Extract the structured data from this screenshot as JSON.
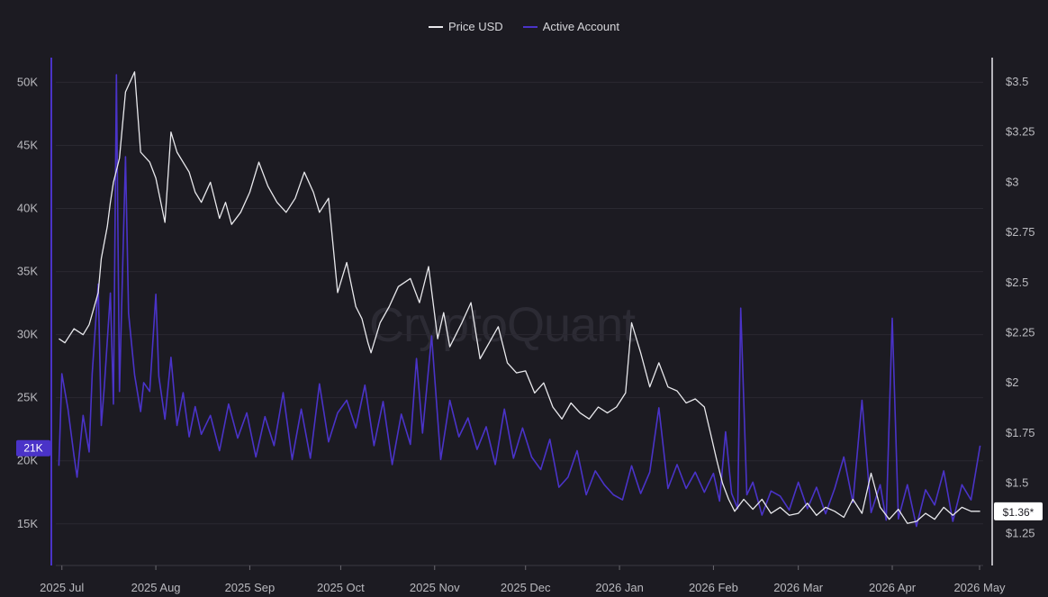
{
  "legend": {
    "price_label": "Price USD",
    "active_label": "Active Account"
  },
  "watermark": "CryptoQuant",
  "chart_data": {
    "type": "line",
    "x_ticks": [
      "2025 Jul",
      "2025 Aug",
      "2025 Sep",
      "2025 Oct",
      "2025 Nov",
      "2025 Dec",
      "2026 Jan",
      "2026 Feb",
      "2026 Mar",
      "2026 Apr",
      "2026 May"
    ],
    "x_range": [
      "2025-06-29",
      "2026-05-01"
    ],
    "left_axis": {
      "ticks": [
        "15K",
        "20K",
        "25K",
        "30K",
        "35K",
        "40K",
        "45K",
        "50K"
      ],
      "tick_values": [
        15000,
        20000,
        25000,
        30000,
        35000,
        40000,
        45000,
        50000
      ],
      "ylim": [
        11700,
        52100
      ],
      "current_label": "21K",
      "current_value": 21000
    },
    "right_axis": {
      "ticks": [
        "$1.25",
        "$1.5",
        "$1.75",
        "$2",
        "$2.25",
        "$2.5",
        "$2.75",
        "$3",
        "$3.25",
        "$3.5"
      ],
      "tick_values": [
        1.25,
        1.5,
        1.75,
        2,
        2.25,
        2.5,
        2.75,
        3,
        3.25,
        3.5
      ],
      "ylim": [
        1.09,
        3.63
      ],
      "current_label": "$1.36*",
      "current_value": 1.36
    },
    "grid": true,
    "series": [
      {
        "name": "Price USD",
        "axis": "right",
        "color": "#e8e8ec",
        "x": [
          "2025-06-30",
          "2025-07-02",
          "2025-07-05",
          "2025-07-08",
          "2025-07-10",
          "2025-07-13",
          "2025-07-14",
          "2025-07-16",
          "2025-07-17",
          "2025-07-18",
          "2025-07-20",
          "2025-07-22",
          "2025-07-25",
          "2025-07-27",
          "2025-07-30",
          "2025-08-01",
          "2025-08-04",
          "2025-08-06",
          "2025-08-08",
          "2025-08-12",
          "2025-08-14",
          "2025-08-16",
          "2025-08-19",
          "2025-08-22",
          "2025-08-24",
          "2025-08-26",
          "2025-08-29",
          "2025-09-01",
          "2025-09-04",
          "2025-09-07",
          "2025-09-10",
          "2025-09-13",
          "2025-09-16",
          "2025-09-19",
          "2025-09-22",
          "2025-09-24",
          "2025-09-27",
          "2025-09-30",
          "2025-10-03",
          "2025-10-06",
          "2025-10-08",
          "2025-10-10",
          "2025-10-11",
          "2025-10-14",
          "2025-10-17",
          "2025-10-20",
          "2025-10-24",
          "2025-10-27",
          "2025-10-30",
          "2025-11-02",
          "2025-11-04",
          "2025-11-06",
          "2025-11-10",
          "2025-11-13",
          "2025-11-16",
          "2025-11-19",
          "2025-11-22",
          "2025-11-25",
          "2025-11-28",
          "2025-12-01",
          "2025-12-04",
          "2025-12-07",
          "2025-12-10",
          "2025-12-13",
          "2025-12-16",
          "2025-12-19",
          "2025-12-22",
          "2025-12-25",
          "2025-12-28",
          "2025-12-31",
          "2026-01-03",
          "2026-01-05",
          "2026-01-08",
          "2026-01-11",
          "2026-01-14",
          "2026-01-17",
          "2026-01-20",
          "2026-01-23",
          "2026-01-26",
          "2026-01-29",
          "2026-01-31",
          "2026-02-02",
          "2026-02-04",
          "2026-02-06",
          "2026-02-08",
          "2026-02-11",
          "2026-02-14",
          "2026-02-17",
          "2026-02-20",
          "2026-02-23",
          "2026-02-26",
          "2026-03-01",
          "2026-03-04",
          "2026-03-07",
          "2026-03-10",
          "2026-03-13",
          "2026-03-16",
          "2026-03-19",
          "2026-03-22",
          "2026-03-25",
          "2026-03-28",
          "2026-03-31",
          "2026-04-03",
          "2026-04-06",
          "2026-04-09",
          "2026-04-12",
          "2026-04-15",
          "2026-04-18",
          "2026-04-21",
          "2026-04-24",
          "2026-04-27",
          "2026-04-30"
        ],
        "values": [
          2.22,
          2.2,
          2.27,
          2.24,
          2.29,
          2.45,
          2.62,
          2.78,
          2.9,
          3.0,
          3.12,
          3.45,
          3.55,
          3.15,
          3.1,
          3.02,
          2.8,
          3.25,
          3.15,
          3.05,
          2.95,
          2.9,
          3.0,
          2.82,
          2.9,
          2.79,
          2.85,
          2.95,
          3.1,
          2.98,
          2.9,
          2.85,
          2.92,
          3.05,
          2.95,
          2.85,
          2.92,
          2.45,
          2.6,
          2.38,
          2.32,
          2.2,
          2.15,
          2.3,
          2.38,
          2.48,
          2.52,
          2.4,
          2.58,
          2.22,
          2.35,
          2.18,
          2.3,
          2.4,
          2.12,
          2.2,
          2.28,
          2.1,
          2.05,
          2.06,
          1.95,
          2.0,
          1.88,
          1.82,
          1.9,
          1.85,
          1.82,
          1.88,
          1.85,
          1.88,
          1.95,
          2.3,
          2.15,
          1.98,
          2.1,
          1.98,
          1.96,
          1.9,
          1.92,
          1.88,
          1.75,
          1.62,
          1.5,
          1.42,
          1.36,
          1.42,
          1.37,
          1.42,
          1.35,
          1.38,
          1.34,
          1.35,
          1.4,
          1.34,
          1.38,
          1.36,
          1.33,
          1.42,
          1.35,
          1.55,
          1.38,
          1.32,
          1.37,
          1.3,
          1.31,
          1.35,
          1.32,
          1.38,
          1.34,
          1.38,
          1.36,
          1.36
        ]
      },
      {
        "name": "Active Account",
        "axis": "left",
        "color": "#4a33c8",
        "x": [
          "2025-06-30",
          "2025-07-01",
          "2025-07-03",
          "2025-07-05",
          "2025-07-06",
          "2025-07-08",
          "2025-07-10",
          "2025-07-11",
          "2025-07-13",
          "2025-07-14",
          "2025-07-15",
          "2025-07-17",
          "2025-07-18",
          "2025-07-19",
          "2025-07-20",
          "2025-07-22",
          "2025-07-23",
          "2025-07-25",
          "2025-07-27",
          "2025-07-28",
          "2025-07-30",
          "2025-08-01",
          "2025-08-02",
          "2025-08-04",
          "2025-08-06",
          "2025-08-08",
          "2025-08-10",
          "2025-08-12",
          "2025-08-14",
          "2025-08-16",
          "2025-08-19",
          "2025-08-22",
          "2025-08-25",
          "2025-08-28",
          "2025-08-31",
          "2025-09-03",
          "2025-09-06",
          "2025-09-09",
          "2025-09-12",
          "2025-09-15",
          "2025-09-18",
          "2025-09-21",
          "2025-09-24",
          "2025-09-27",
          "2025-09-30",
          "2025-10-03",
          "2025-10-06",
          "2025-10-09",
          "2025-10-12",
          "2025-10-15",
          "2025-10-18",
          "2025-10-21",
          "2025-10-24",
          "2025-10-26",
          "2025-10-28",
          "2025-10-31",
          "2025-11-03",
          "2025-11-06",
          "2025-11-09",
          "2025-11-12",
          "2025-11-15",
          "2025-11-18",
          "2025-11-21",
          "2025-11-24",
          "2025-11-27",
          "2025-11-30",
          "2025-12-03",
          "2025-12-06",
          "2025-12-09",
          "2025-12-12",
          "2025-12-15",
          "2025-12-18",
          "2025-12-21",
          "2025-12-24",
          "2025-12-27",
          "2025-12-30",
          "2026-01-02",
          "2026-01-05",
          "2026-01-08",
          "2026-01-11",
          "2026-01-14",
          "2026-01-17",
          "2026-01-20",
          "2026-01-23",
          "2026-01-26",
          "2026-01-29",
          "2026-02-01",
          "2026-02-03",
          "2026-02-05",
          "2026-02-07",
          "2026-02-09",
          "2026-02-10",
          "2026-02-12",
          "2026-02-14",
          "2026-02-17",
          "2026-02-20",
          "2026-02-23",
          "2026-02-26",
          "2026-03-01",
          "2026-03-04",
          "2026-03-07",
          "2026-03-10",
          "2026-03-13",
          "2026-03-16",
          "2026-03-19",
          "2026-03-22",
          "2026-03-25",
          "2026-03-28",
          "2026-03-30",
          "2026-04-01",
          "2026-04-03",
          "2026-04-06",
          "2026-04-09",
          "2026-04-12",
          "2026-04-15",
          "2026-04-18",
          "2026-04-21",
          "2026-04-24",
          "2026-04-27",
          "2026-04-30"
        ],
        "values": [
          19600,
          26900,
          24100,
          20400,
          18700,
          23600,
          20700,
          26900,
          34000,
          22800,
          25900,
          33300,
          24500,
          50600,
          25500,
          44100,
          31700,
          26800,
          23900,
          26200,
          25500,
          33200,
          26700,
          23300,
          28200,
          22800,
          25400,
          21900,
          24300,
          22100,
          23600,
          20800,
          24500,
          21800,
          23800,
          20300,
          23500,
          21200,
          25400,
          20100,
          24100,
          20200,
          26100,
          21500,
          23800,
          24800,
          22600,
          26000,
          21200,
          24700,
          19700,
          23700,
          21300,
          28100,
          22200,
          29900,
          20100,
          24800,
          21900,
          23400,
          20900,
          22700,
          19700,
          24100,
          20200,
          22600,
          20300,
          19300,
          21700,
          17900,
          18700,
          20800,
          17300,
          19200,
          18100,
          17300,
          16900,
          19600,
          17400,
          19100,
          24200,
          17800,
          19700,
          17800,
          19100,
          17500,
          19000,
          16800,
          22300,
          17400,
          16200,
          32100,
          17300,
          18300,
          15700,
          17600,
          17200,
          16100,
          18300,
          16200,
          17900,
          15800,
          17800,
          20300,
          16700,
          24800,
          15900,
          18100,
          15300,
          31300,
          15400,
          18100,
          14800,
          17700,
          16500,
          19200,
          15200,
          18100,
          16900,
          21200
        ]
      }
    ]
  }
}
